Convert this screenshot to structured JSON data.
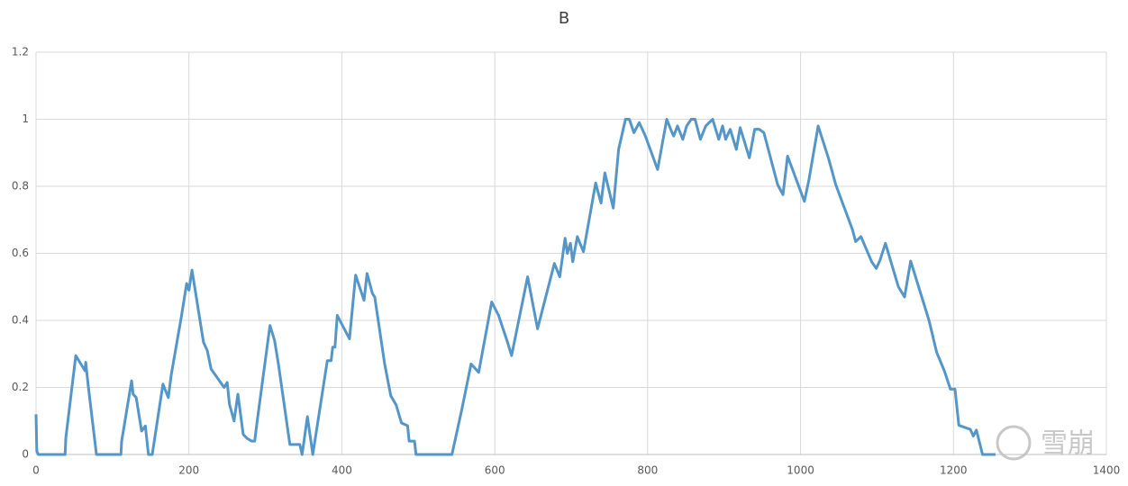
{
  "chart_data": {
    "type": "line",
    "title": "B",
    "watermark": "雪崩",
    "xlim": [
      0,
      1400
    ],
    "xticks": [
      0,
      200,
      400,
      600,
      800,
      1000,
      1200,
      1400
    ],
    "ylim": [
      0,
      1.2
    ],
    "yticks": [
      0,
      0.2,
      0.4,
      0.6,
      0.8,
      1,
      1.2
    ],
    "grid": true,
    "x": [
      0,
      1,
      3,
      38,
      39,
      52,
      64,
      65,
      68,
      79,
      111,
      112,
      125,
      127,
      131,
      137,
      138,
      143,
      147,
      152,
      166,
      173,
      177,
      190,
      197,
      200,
      204,
      219,
      224,
      229,
      246,
      250,
      253,
      259,
      264,
      271,
      276,
      282,
      286,
      289,
      306,
      312,
      317,
      332,
      345,
      348,
      355,
      362,
      381,
      386,
      388,
      391,
      394,
      410,
      418,
      429,
      433,
      440,
      443,
      456,
      464,
      471,
      478,
      486,
      488,
      495,
      497,
      544,
      557,
      569,
      579,
      596,
      605,
      613,
      616,
      622,
      643,
      656,
      678,
      685,
      692,
      695,
      699,
      702,
      708,
      716,
      732,
      739,
      744,
      755,
      762,
      771,
      776,
      782,
      789,
      797,
      813,
      821,
      825,
      831,
      834,
      839,
      846,
      851,
      857,
      862,
      869,
      876,
      885,
      893,
      898,
      902,
      908,
      916,
      921,
      933,
      940,
      946,
      952,
      970,
      977,
      983,
      1005,
      1011,
      1023,
      1037,
      1046,
      1068,
      1072,
      1079,
      1093,
      1099,
      1104,
      1111,
      1128,
      1136,
      1144,
      1168,
      1178,
      1188,
      1196,
      1202,
      1207,
      1222,
      1226,
      1230,
      1238,
      1255
    ],
    "series": [
      {
        "name": "B",
        "color": "#5596c8",
        "values": [
          0.12,
          0.01,
          0,
          0,
          0.05,
          0.295,
          0.25,
          0.275,
          0.21,
          0,
          0,
          0.04,
          0.22,
          0.18,
          0.17,
          0.085,
          0.07,
          0.085,
          0,
          0,
          0.21,
          0.17,
          0.24,
          0.41,
          0.51,
          0.49,
          0.55,
          0.335,
          0.31,
          0.255,
          0.2,
          0.215,
          0.15,
          0.1,
          0.18,
          0.06,
          0.048,
          0.04,
          0.04,
          0.095,
          0.385,
          0.34,
          0.27,
          0.03,
          0.03,
          0,
          0.113,
          0,
          0.28,
          0.28,
          0.32,
          0.32,
          0.415,
          0.345,
          0.535,
          0.46,
          0.54,
          0.48,
          0.47,
          0.27,
          0.175,
          0.148,
          0.094,
          0.086,
          0.04,
          0.04,
          0,
          0,
          0.135,
          0.27,
          0.245,
          0.455,
          0.415,
          0.36,
          0.34,
          0.295,
          0.53,
          0.375,
          0.57,
          0.53,
          0.645,
          0.6,
          0.63,
          0.575,
          0.65,
          0.605,
          0.81,
          0.75,
          0.84,
          0.735,
          0.91,
          1.0,
          1.0,
          0.96,
          0.99,
          0.95,
          0.85,
          0.95,
          1.0,
          0.965,
          0.95,
          0.98,
          0.94,
          0.98,
          1.0,
          1.0,
          0.94,
          0.98,
          1.0,
          0.94,
          0.98,
          0.94,
          0.97,
          0.91,
          0.975,
          0.885,
          0.97,
          0.97,
          0.96,
          0.805,
          0.775,
          0.89,
          0.755,
          0.82,
          0.98,
          0.88,
          0.805,
          0.67,
          0.635,
          0.65,
          0.575,
          0.555,
          0.58,
          0.63,
          0.5,
          0.47,
          0.577,
          0.4,
          0.305,
          0.25,
          0.195,
          0.195,
          0.087,
          0.075,
          0.055,
          0.073,
          0,
          0
        ]
      }
    ]
  }
}
